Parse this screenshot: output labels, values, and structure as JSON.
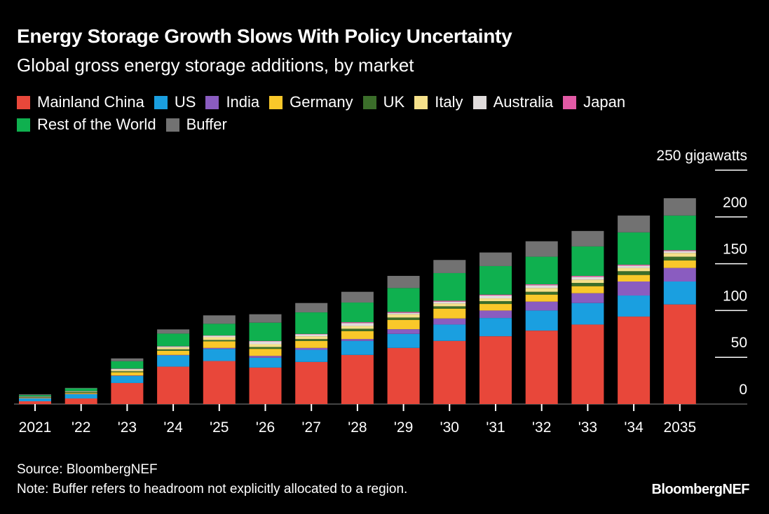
{
  "title": "Energy Storage Growth Slows With Policy Uncertainty",
  "subtitle": "Global gross energy storage additions, by market",
  "source": "Source: BloombergNEF",
  "note": "Note: Buffer refers to headroom not explicitly allocated to a region.",
  "logo": "BloombergNEF",
  "chart_data": {
    "type": "bar",
    "stacked": true,
    "categories": [
      "2021",
      "'22",
      "'23",
      "'24",
      "'25",
      "'26",
      "'27",
      "'28",
      "'29",
      "'30",
      "'31",
      "'32",
      "'33",
      "'34",
      "2035"
    ],
    "ylabel": "gigawatts",
    "ylim": [
      0,
      250
    ],
    "yticks": [
      0,
      50,
      100,
      150,
      200,
      250
    ],
    "ytick_labels": [
      "0",
      "50",
      "100",
      "150",
      "200",
      "250 gigawatts"
    ],
    "legend_position": "top-left",
    "series": [
      {
        "name": "Mainland China",
        "color": "#e8473a",
        "values": [
          3,
          6,
          22.5,
          40,
          46,
          39,
          45,
          52.5,
          60,
          67.5,
          72.5,
          78.5,
          85,
          93.5,
          106.5
        ]
      },
      {
        "name": "US",
        "color": "#1a9fe0",
        "values": [
          3,
          4.5,
          7.5,
          12,
          13,
          10.5,
          13,
          15,
          15,
          17.5,
          19.5,
          21.5,
          23,
          22.5,
          24.5
        ]
      },
      {
        "name": "India",
        "color": "#8a5cc0",
        "values": [
          0.3,
          0.3,
          0.5,
          0.5,
          1,
          2,
          2,
          2,
          5,
          6.5,
          8,
          9.5,
          10.5,
          15,
          14.5
        ]
      },
      {
        "name": "Germany",
        "color": "#f9c82a",
        "values": [
          0.5,
          1,
          3.5,
          4.5,
          7,
          7.5,
          7.5,
          8.5,
          10,
          10.5,
          7,
          7.5,
          7.5,
          7,
          8
        ]
      },
      {
        "name": "UK",
        "color": "#3b6e2a",
        "values": [
          0.5,
          1,
          1,
          1.5,
          1.5,
          2,
          2,
          2.5,
          2.5,
          2.5,
          3,
          3,
          3.5,
          4,
          4
        ]
      },
      {
        "name": "Italy",
        "color": "#f5e08a",
        "values": [
          0.3,
          0.5,
          1.5,
          2,
          3,
          3,
          3,
          3,
          3.5,
          3,
          3,
          4,
          3.5,
          3.5,
          4
        ]
      },
      {
        "name": "Australia",
        "color": "#e0dcdc",
        "values": [
          0.3,
          0.3,
          1,
          1,
          1.5,
          3,
          2,
          3,
          1.5,
          2,
          3,
          3,
          3,
          2.5,
          2
        ]
      },
      {
        "name": "Japan",
        "color": "#e25aa5",
        "values": [
          0.2,
          0.2,
          0.3,
          0.3,
          0.3,
          0.5,
          0.5,
          1,
          1,
          1,
          1,
          1,
          1,
          1,
          1
        ]
      },
      {
        "name": "Rest of the World",
        "color": "#0fb04f",
        "values": [
          1.5,
          3,
          8,
          13.5,
          12.5,
          19.5,
          23,
          21,
          25.5,
          29.5,
          30.5,
          29.5,
          31.5,
          34.5,
          37
        ]
      },
      {
        "name": "Buffer",
        "color": "#727272",
        "values": [
          0.8,
          0.5,
          3,
          4.5,
          9,
          9,
          10,
          11.5,
          13,
          14,
          14.5,
          16.5,
          16.5,
          18,
          18.5
        ]
      }
    ]
  }
}
